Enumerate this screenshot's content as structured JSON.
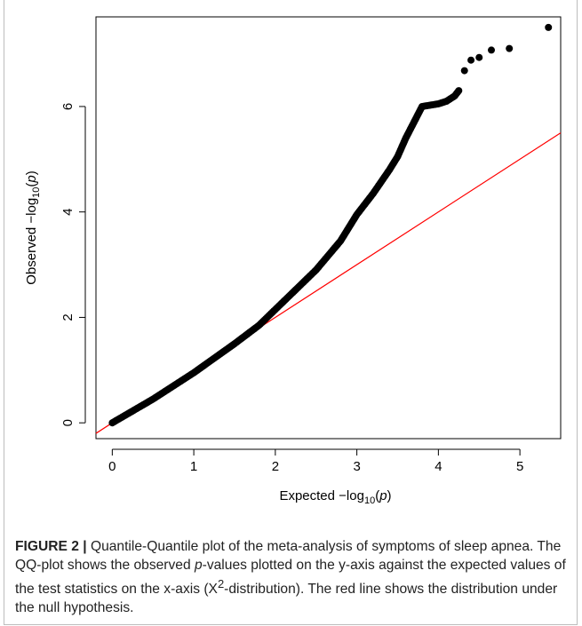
{
  "chart_data": {
    "type": "scatter",
    "title": "",
    "xlabel": {
      "prefix": "Expected  −log",
      "sub": "10",
      "var": "p"
    },
    "ylabel": {
      "prefix": "Observed  −log",
      "sub": "10",
      "var": "p"
    },
    "xlim": [
      -0.2,
      5.5
    ],
    "ylim": [
      -0.3,
      7.7
    ],
    "xticks": [
      0,
      1,
      2,
      3,
      4,
      5
    ],
    "yticks": [
      0,
      2,
      4,
      6
    ],
    "grid": false,
    "legend": "none",
    "reference_line": {
      "slope": 1,
      "intercept": 0,
      "color": "#ff0000"
    },
    "point_color": "#000000",
    "trend": {
      "x": [
        0.0,
        0.5,
        1.0,
        1.5,
        1.8,
        2.0,
        2.5,
        2.8,
        3.0,
        3.2,
        3.4,
        3.5,
        3.6,
        3.7,
        3.75,
        3.8,
        4.0,
        4.1,
        4.2,
        4.25
      ],
      "y": [
        0.0,
        0.45,
        0.95,
        1.5,
        1.85,
        2.15,
        2.9,
        3.45,
        3.95,
        4.35,
        4.8,
        5.05,
        5.4,
        5.7,
        5.85,
        6.0,
        6.05,
        6.1,
        6.2,
        6.3
      ]
    },
    "outliers": {
      "x": [
        4.32,
        4.4,
        4.5,
        4.65,
        4.87,
        5.35
      ],
      "y": [
        6.68,
        6.88,
        6.93,
        7.07,
        7.1,
        7.5
      ]
    }
  },
  "caption": {
    "label": "FIGURE 2 |",
    "text_before_p": " Quantile-Quantile plot of the meta-analysis of symptoms of sleep apnea. The QQ-plot shows the observed ",
    "p_italic": "p",
    "text_after_p": "-values plotted on the y-axis against the expected values of the test statistics on the x-axis (X",
    "superscript": "2",
    "text_end": "-distribution). The red line shows the distribution under the null hypothesis."
  }
}
